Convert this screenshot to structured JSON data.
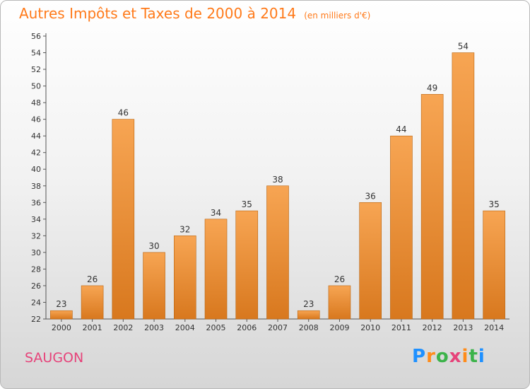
{
  "chart_data": {
    "type": "bar",
    "title": "Autres Impôts et Taxes de 2000 à 2014",
    "subtitle": "(en milliers d'€)",
    "categories": [
      "2000",
      "2001",
      "2002",
      "2003",
      "2004",
      "2005",
      "2006",
      "2007",
      "2008",
      "2009",
      "2010",
      "2011",
      "2012",
      "2013",
      "2014"
    ],
    "values": [
      23,
      26,
      46,
      30,
      32,
      34,
      35,
      38,
      23,
      26,
      36,
      44,
      49,
      54,
      35
    ],
    "ylim": [
      22,
      56
    ],
    "ytick_step": 2,
    "xlabel": "",
    "ylabel": "",
    "grid": false
  },
  "labels": {
    "commune": "SAUGON",
    "logo": "Proxiti"
  },
  "colors": {
    "bar_top": "#f7a553",
    "bar_bottom": "#d8781e",
    "bar_edge": "#b9640f",
    "title": "#ff7a1a",
    "commune": "#e6437a"
  }
}
